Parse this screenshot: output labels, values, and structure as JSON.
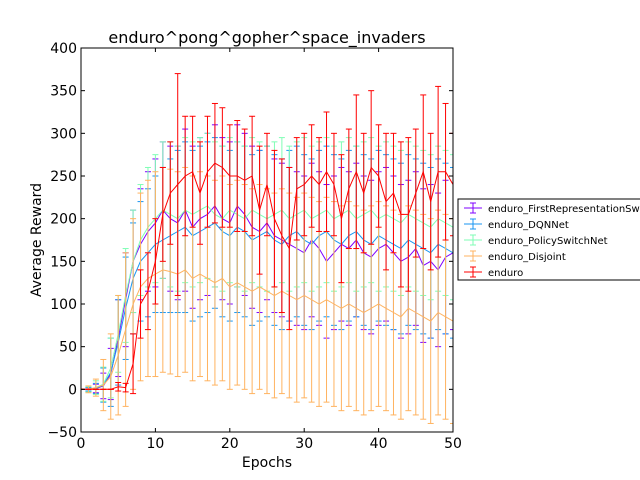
{
  "chart_data": {
    "type": "line",
    "title": "enduro^pong^gopher^space_invaders",
    "xlabel": "Epochs",
    "ylabel": "Average Reward",
    "xlim": [
      0,
      50
    ],
    "ylim": [
      -50,
      400
    ],
    "xticks": [
      "0",
      "10",
      "20",
      "30",
      "40",
      "50"
    ],
    "yticks": [
      "−50",
      "0",
      "50",
      "100",
      "150",
      "200",
      "250",
      "300",
      "350",
      "400"
    ],
    "grid": false,
    "legend_position": "right, outside plot",
    "series": [
      {
        "name": "enduro_FirstRepresentationSwitchNet",
        "color": "#7f00ff",
        "values": [
          0,
          0,
          1,
          4,
          18,
          60,
          105,
          150,
          170,
          185,
          195,
          210,
          200,
          195,
          210,
          190,
          200,
          205,
          215,
          200,
          195,
          215,
          205,
          190,
          185,
          195,
          180,
          175,
          170,
          165,
          160,
          175,
          165,
          150,
          160,
          170,
          165,
          175,
          160,
          155,
          165,
          170,
          160,
          150,
          155,
          165,
          145,
          150,
          140,
          155,
          160
        ],
        "err": [
          0,
          2,
          5,
          15,
          30,
          45,
          55,
          60,
          65,
          70,
          75,
          80,
          85,
          90,
          95,
          95,
          95,
          95,
          95,
          95,
          95,
          95,
          95,
          95,
          95,
          90,
          90,
          90,
          90,
          90,
          90,
          90,
          90,
          90,
          90,
          90,
          90,
          90,
          90,
          90,
          90,
          90,
          90,
          90,
          90,
          90,
          90,
          90,
          90,
          90,
          90
        ]
      },
      {
        "name": "enduro_DQNNet",
        "color": "#1996f2",
        "values": [
          0,
          0,
          1,
          5,
          20,
          55,
          95,
          130,
          150,
          160,
          170,
          175,
          180,
          185,
          190,
          180,
          185,
          190,
          195,
          185,
          180,
          190,
          185,
          175,
          180,
          185,
          175,
          170,
          180,
          185,
          175,
          170,
          180,
          185,
          175,
          170,
          180,
          185,
          175,
          170,
          180,
          175,
          170,
          165,
          175,
          170,
          165,
          160,
          170,
          165,
          160
        ],
        "err": [
          0,
          2,
          6,
          20,
          40,
          50,
          60,
          65,
          70,
          75,
          80,
          85,
          90,
          95,
          100,
          100,
          100,
          100,
          100,
          100,
          100,
          100,
          100,
          100,
          100,
          100,
          100,
          100,
          100,
          100,
          100,
          100,
          100,
          100,
          100,
          100,
          100,
          100,
          100,
          100,
          100,
          100,
          100,
          100,
          100,
          100,
          100,
          100,
          100,
          100,
          100
        ]
      },
      {
        "name": "enduro_PolicySwitchNet",
        "color": "#7ffeb5",
        "values": [
          0,
          0,
          2,
          6,
          25,
          65,
          110,
          150,
          175,
          190,
          200,
          210,
          205,
          200,
          210,
          205,
          210,
          215,
          205,
          200,
          210,
          205,
          200,
          210,
          205,
          200,
          205,
          210,
          200,
          205,
          210,
          200,
          205,
          210,
          200,
          205,
          210,
          200,
          205,
          210,
          200,
          205,
          200,
          195,
          205,
          200,
          195,
          190,
          200,
          195,
          190
        ],
        "err": [
          0,
          3,
          8,
          20,
          35,
          45,
          55,
          60,
          65,
          70,
          75,
          80,
          85,
          85,
          85,
          85,
          85,
          85,
          85,
          85,
          85,
          85,
          85,
          85,
          85,
          85,
          85,
          85,
          85,
          85,
          85,
          85,
          85,
          85,
          85,
          85,
          85,
          85,
          85,
          85,
          85,
          85,
          85,
          85,
          85,
          85,
          85,
          85,
          85,
          85,
          85
        ]
      },
      {
        "name": "enduro_Disjoint",
        "color": "#ffb360",
        "values": [
          0,
          0,
          2,
          5,
          15,
          40,
          70,
          100,
          120,
          130,
          135,
          140,
          138,
          135,
          140,
          130,
          135,
          130,
          125,
          130,
          120,
          125,
          120,
          115,
          120,
          115,
          110,
          115,
          110,
          105,
          110,
          105,
          100,
          105,
          100,
          95,
          100,
          95,
          90,
          95,
          100,
          95,
          90,
          85,
          95,
          90,
          85,
          80,
          90,
          85,
          80
        ],
        "err": [
          0,
          4,
          10,
          30,
          50,
          70,
          90,
          100,
          110,
          115,
          120,
          120,
          120,
          120,
          120,
          120,
          120,
          120,
          120,
          120,
          120,
          120,
          120,
          120,
          120,
          120,
          120,
          120,
          120,
          120,
          120,
          120,
          120,
          120,
          120,
          120,
          120,
          120,
          120,
          120,
          120,
          120,
          120,
          120,
          120,
          120,
          120,
          120,
          120,
          120,
          120
        ]
      },
      {
        "name": "enduro",
        "color": "#ff0000",
        "values": [
          0,
          0,
          0,
          0,
          0,
          3,
          2,
          30,
          100,
          115,
          150,
          205,
          230,
          240,
          250,
          255,
          230,
          255,
          265,
          260,
          250,
          250,
          245,
          250,
          210,
          240,
          200,
          180,
          165,
          235,
          240,
          250,
          240,
          255,
          240,
          200,
          235,
          255,
          230,
          260,
          250,
          220,
          230,
          205,
          205,
          230,
          255,
          220,
          255,
          255,
          240
        ],
        "err": [
          0,
          0,
          0,
          0,
          0,
          5,
          5,
          35,
          40,
          45,
          50,
          55,
          60,
          130,
          70,
          65,
          60,
          65,
          70,
          70,
          60,
          65,
          60,
          70,
          75,
          60,
          80,
          90,
          95,
          60,
          60,
          60,
          55,
          70,
          60,
          75,
          70,
          90,
          70,
          90,
          60,
          80,
          70,
          85,
          90,
          75,
          90,
          80,
          100,
          80,
          60
        ]
      }
    ]
  }
}
